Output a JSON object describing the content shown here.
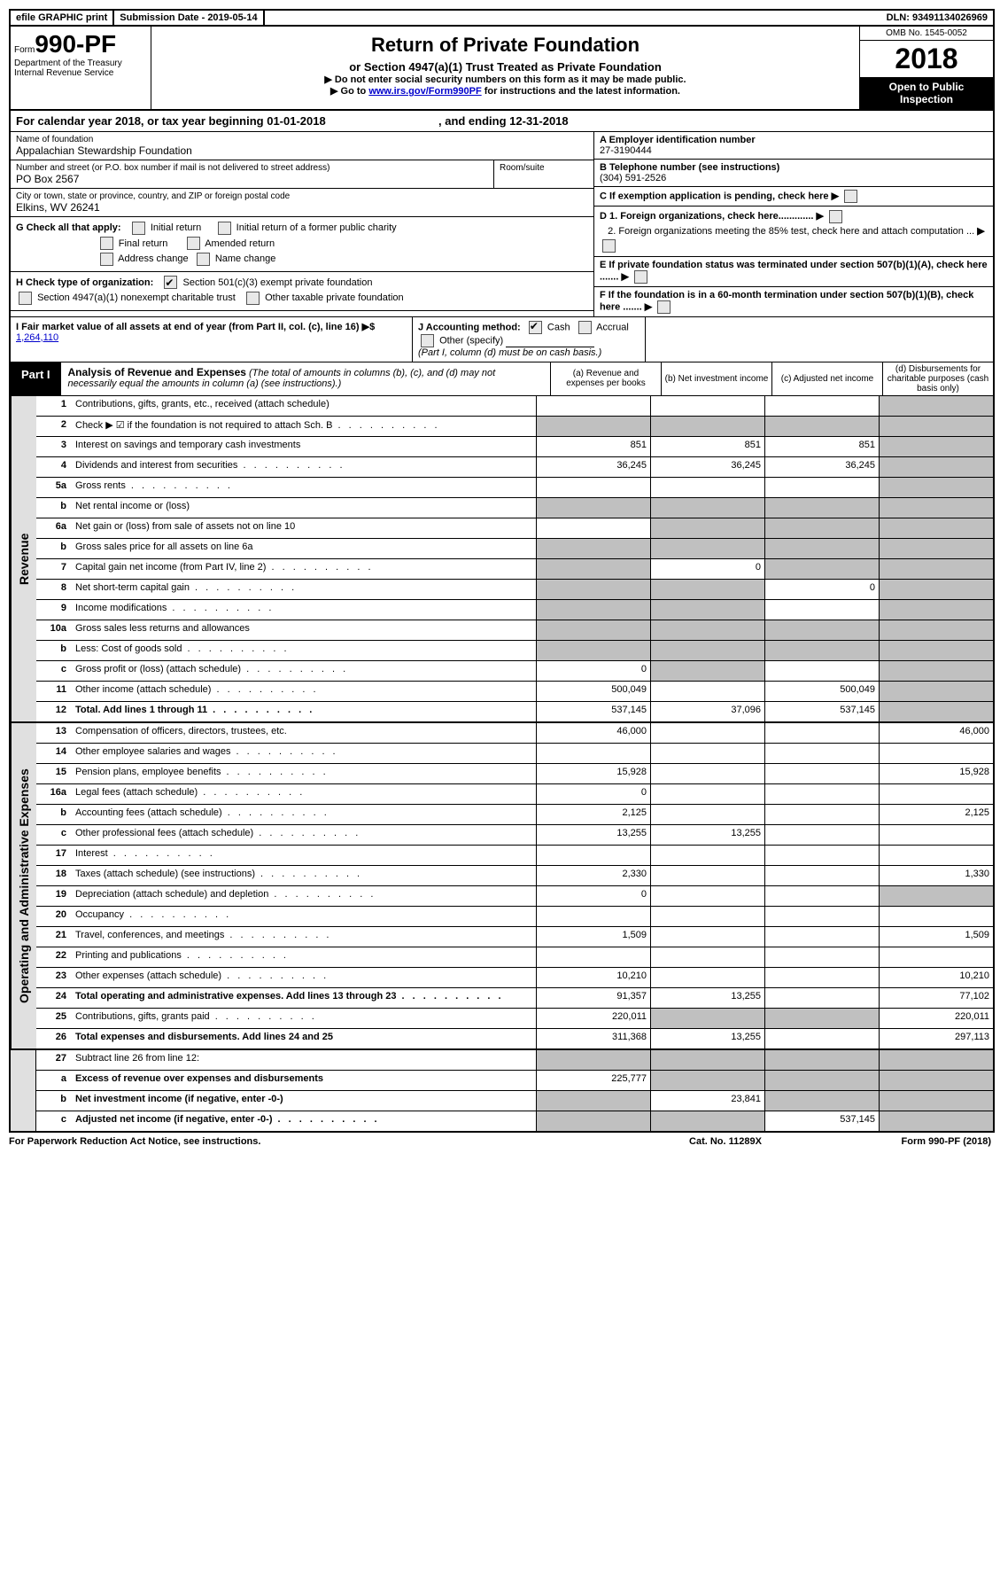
{
  "top": {
    "efile": "efile GRAPHIC print",
    "submission": "Submission Date - 2019-05-14",
    "dln": "DLN: 93491134026969"
  },
  "header": {
    "form_prefix": "Form",
    "form_number": "990-PF",
    "dept": "Department of the Treasury",
    "irs": "Internal Revenue Service",
    "title": "Return of Private Foundation",
    "subtitle": "or Section 4947(a)(1) Trust Treated as Private Foundation",
    "warn": "▶ Do not enter social security numbers on this form as it may be made public.",
    "goto_pre": "▶ Go to ",
    "goto_link": "www.irs.gov/Form990PF",
    "goto_post": " for instructions and the latest information.",
    "omb": "OMB No. 1545-0052",
    "year": "2018",
    "open": "Open to Public Inspection"
  },
  "calyear": {
    "text_a": "For calendar year 2018, or tax year beginning 01-01-2018",
    "text_b": ", and ending 12-31-2018"
  },
  "entity": {
    "name_label": "Name of foundation",
    "name": "Appalachian Stewardship Foundation",
    "addr_label": "Number and street (or P.O. box number if mail is not delivered to street address)",
    "addr": "PO Box 2567",
    "room_label": "Room/suite",
    "city_label": "City or town, state or province, country, and ZIP or foreign postal code",
    "city": "Elkins, WV  26241",
    "ein_label": "A Employer identification number",
    "ein": "27-3190444",
    "phone_label": "B Telephone number (see instructions)",
    "phone": "(304) 591-2526",
    "c_label": "C If exemption application is pending, check here"
  },
  "g": {
    "label": "G Check all that apply:",
    "initial": "Initial return",
    "initial_former": "Initial return of a former public charity",
    "final": "Final return",
    "amended": "Amended return",
    "addr_change": "Address change",
    "name_change": "Name change"
  },
  "h": {
    "label": "H Check type of organization:",
    "opt1": "Section 501(c)(3) exempt private foundation",
    "opt2": "Section 4947(a)(1) nonexempt charitable trust",
    "opt3": "Other taxable private foundation"
  },
  "d": {
    "d1": "D 1. Foreign organizations, check here.............",
    "d2": "2. Foreign organizations meeting the 85% test, check here and attach computation ...",
    "e": "E  If private foundation status was terminated under section 507(b)(1)(A), check here .......",
    "f": "F  If the foundation is in a 60-month termination under section 507(b)(1)(B), check here ......."
  },
  "i": {
    "label": "I Fair market value of all assets at end of year (from Part II, col. (c), line 16) ▶$",
    "value": "1,264,110"
  },
  "j": {
    "label": "J Accounting method:",
    "cash": "Cash",
    "accrual": "Accrual",
    "other": "Other (specify)",
    "note": "(Part I, column (d) must be on cash basis.)"
  },
  "part1": {
    "label": "Part I",
    "title": "Analysis of Revenue and Expenses",
    "sub": " (The total of amounts in columns (b), (c), and (d) may not necessarily equal the amounts in column (a) (see instructions).)",
    "col_a": "(a)  Revenue and expenses per books",
    "col_b": "(b)  Net investment income",
    "col_c": "(c)  Adjusted net income",
    "col_d": "(d)  Disbursements for charitable purposes (cash basis only)"
  },
  "revenue_label": "Revenue",
  "opex_label": "Operating and Administrative Expenses",
  "rows": {
    "r1": {
      "no": "1",
      "desc": "Contributions, gifts, grants, etc., received (attach schedule)",
      "a": "",
      "b": "",
      "c": "",
      "d": "",
      "shade": [
        "d"
      ]
    },
    "r2": {
      "no": "2",
      "desc": "Check ▶ ☑ if the foundation is not required to attach Sch. B",
      "a": "",
      "b": "",
      "c": "",
      "d": "",
      "shade": [
        "a",
        "b",
        "c",
        "d"
      ],
      "dots": true
    },
    "r3": {
      "no": "3",
      "desc": "Interest on savings and temporary cash investments",
      "a": "851",
      "b": "851",
      "c": "851",
      "d": "",
      "shade": [
        "d"
      ]
    },
    "r4": {
      "no": "4",
      "desc": "Dividends and interest from securities",
      "a": "36,245",
      "b": "36,245",
      "c": "36,245",
      "d": "",
      "shade": [
        "d"
      ],
      "dots": true
    },
    "r5a": {
      "no": "5a",
      "desc": "Gross rents",
      "a": "",
      "b": "",
      "c": "",
      "d": "",
      "shade": [
        "d"
      ],
      "dots": true
    },
    "r5b": {
      "no": "b",
      "desc": "Net rental income or (loss)",
      "a": "",
      "b": "",
      "c": "",
      "d": "",
      "shade": [
        "a",
        "b",
        "c",
        "d"
      ]
    },
    "r6a": {
      "no": "6a",
      "desc": "Net gain or (loss) from sale of assets not on line 10",
      "a": "",
      "b": "",
      "c": "",
      "d": "",
      "shade": [
        "b",
        "c",
        "d"
      ]
    },
    "r6b": {
      "no": "b",
      "desc": "Gross sales price for all assets on line 6a",
      "a": "",
      "b": "",
      "c": "",
      "d": "",
      "shade": [
        "a",
        "b",
        "c",
        "d"
      ]
    },
    "r7": {
      "no": "7",
      "desc": "Capital gain net income (from Part IV, line 2)",
      "a": "",
      "b": "0",
      "c": "",
      "d": "",
      "shade": [
        "a",
        "c",
        "d"
      ],
      "dots": true
    },
    "r8": {
      "no": "8",
      "desc": "Net short-term capital gain",
      "a": "",
      "b": "",
      "c": "0",
      "d": "",
      "shade": [
        "a",
        "b",
        "d"
      ],
      "dots": true
    },
    "r9": {
      "no": "9",
      "desc": "Income modifications",
      "a": "",
      "b": "",
      "c": "",
      "d": "",
      "shade": [
        "a",
        "b",
        "d"
      ],
      "dots": true
    },
    "r10a": {
      "no": "10a",
      "desc": "Gross sales less returns and allowances",
      "a": "",
      "b": "",
      "c": "",
      "d": "",
      "shade": [
        "a",
        "b",
        "c",
        "d"
      ]
    },
    "r10b": {
      "no": "b",
      "desc": "Less: Cost of goods sold",
      "a": "",
      "b": "",
      "c": "",
      "d": "",
      "shade": [
        "a",
        "b",
        "c",
        "d"
      ],
      "dots": true
    },
    "r10c": {
      "no": "c",
      "desc": "Gross profit or (loss) (attach schedule)",
      "a": "0",
      "b": "",
      "c": "",
      "d": "",
      "shade": [
        "b",
        "d"
      ],
      "dots": true
    },
    "r11": {
      "no": "11",
      "desc": "Other income (attach schedule)",
      "a": "500,049",
      "b": "",
      "c": "500,049",
      "d": "",
      "shade": [
        "d"
      ],
      "dots": true
    },
    "r12": {
      "no": "12",
      "desc": "Total. Add lines 1 through 11",
      "a": "537,145",
      "b": "37,096",
      "c": "537,145",
      "d": "",
      "shade": [
        "d"
      ],
      "dots": true,
      "bold": true
    },
    "r13": {
      "no": "13",
      "desc": "Compensation of officers, directors, trustees, etc.",
      "a": "46,000",
      "b": "",
      "c": "",
      "d": "46,000"
    },
    "r14": {
      "no": "14",
      "desc": "Other employee salaries and wages",
      "a": "",
      "b": "",
      "c": "",
      "d": "",
      "dots": true
    },
    "r15": {
      "no": "15",
      "desc": "Pension plans, employee benefits",
      "a": "15,928",
      "b": "",
      "c": "",
      "d": "15,928",
      "dots": true
    },
    "r16a": {
      "no": "16a",
      "desc": "Legal fees (attach schedule)",
      "a": "0",
      "b": "",
      "c": "",
      "d": "",
      "dots": true
    },
    "r16b": {
      "no": "b",
      "desc": "Accounting fees (attach schedule)",
      "a": "2,125",
      "b": "",
      "c": "",
      "d": "2,125",
      "dots": true
    },
    "r16c": {
      "no": "c",
      "desc": "Other professional fees (attach schedule)",
      "a": "13,255",
      "b": "13,255",
      "c": "",
      "d": "",
      "dots": true
    },
    "r17": {
      "no": "17",
      "desc": "Interest",
      "a": "",
      "b": "",
      "c": "",
      "d": "",
      "dots": true
    },
    "r18": {
      "no": "18",
      "desc": "Taxes (attach schedule) (see instructions)",
      "a": "2,330",
      "b": "",
      "c": "",
      "d": "1,330",
      "dots": true
    },
    "r19": {
      "no": "19",
      "desc": "Depreciation (attach schedule) and depletion",
      "a": "0",
      "b": "",
      "c": "",
      "d": "",
      "shade": [
        "d"
      ],
      "dots": true
    },
    "r20": {
      "no": "20",
      "desc": "Occupancy",
      "a": "",
      "b": "",
      "c": "",
      "d": "",
      "dots": true
    },
    "r21": {
      "no": "21",
      "desc": "Travel, conferences, and meetings",
      "a": "1,509",
      "b": "",
      "c": "",
      "d": "1,509",
      "dots": true
    },
    "r22": {
      "no": "22",
      "desc": "Printing and publications",
      "a": "",
      "b": "",
      "c": "",
      "d": "",
      "dots": true
    },
    "r23": {
      "no": "23",
      "desc": "Other expenses (attach schedule)",
      "a": "10,210",
      "b": "",
      "c": "",
      "d": "10,210",
      "dots": true
    },
    "r24": {
      "no": "24",
      "desc": "Total operating and administrative expenses. Add lines 13 through 23",
      "a": "91,357",
      "b": "13,255",
      "c": "",
      "d": "77,102",
      "dots": true,
      "bold": true
    },
    "r25": {
      "no": "25",
      "desc": "Contributions, gifts, grants paid",
      "a": "220,011",
      "b": "",
      "c": "",
      "d": "220,011",
      "shade": [
        "b",
        "c"
      ],
      "dots": true
    },
    "r26": {
      "no": "26",
      "desc": "Total expenses and disbursements. Add lines 24 and 25",
      "a": "311,368",
      "b": "13,255",
      "c": "",
      "d": "297,113",
      "bold": true
    },
    "r27": {
      "no": "27",
      "desc": "Subtract line 26 from line 12:",
      "a": "",
      "b": "",
      "c": "",
      "d": "",
      "shade": [
        "a",
        "b",
        "c",
        "d"
      ]
    },
    "r27a": {
      "no": "a",
      "desc": "Excess of revenue over expenses and disbursements",
      "a": "225,777",
      "b": "",
      "c": "",
      "d": "",
      "shade": [
        "b",
        "c",
        "d"
      ],
      "bold": true
    },
    "r27b": {
      "no": "b",
      "desc": "Net investment income (if negative, enter -0-)",
      "a": "",
      "b": "23,841",
      "c": "",
      "d": "",
      "shade": [
        "a",
        "c",
        "d"
      ],
      "bold": true
    },
    "r27c": {
      "no": "c",
      "desc": "Adjusted net income (if negative, enter -0-)",
      "a": "",
      "b": "",
      "c": "537,145",
      "d": "",
      "shade": [
        "a",
        "b",
        "d"
      ],
      "bold": true,
      "dots": true
    }
  },
  "footer": {
    "left": "For Paperwork Reduction Act Notice, see instructions.",
    "mid": "Cat. No. 11289X",
    "right": "Form 990-PF (2018)"
  },
  "revenue_keys": [
    "r1",
    "r2",
    "r3",
    "r4",
    "r5a",
    "r5b",
    "r6a",
    "r6b",
    "r7",
    "r8",
    "r9",
    "r10a",
    "r10b",
    "r10c",
    "r11",
    "r12"
  ],
  "opex_keys": [
    "r13",
    "r14",
    "r15",
    "r16a",
    "r16b",
    "r16c",
    "r17",
    "r18",
    "r19",
    "r20",
    "r21",
    "r22",
    "r23",
    "r24",
    "r25",
    "r26"
  ],
  "bottom_keys": [
    "r27",
    "r27a",
    "r27b",
    "r27c"
  ]
}
